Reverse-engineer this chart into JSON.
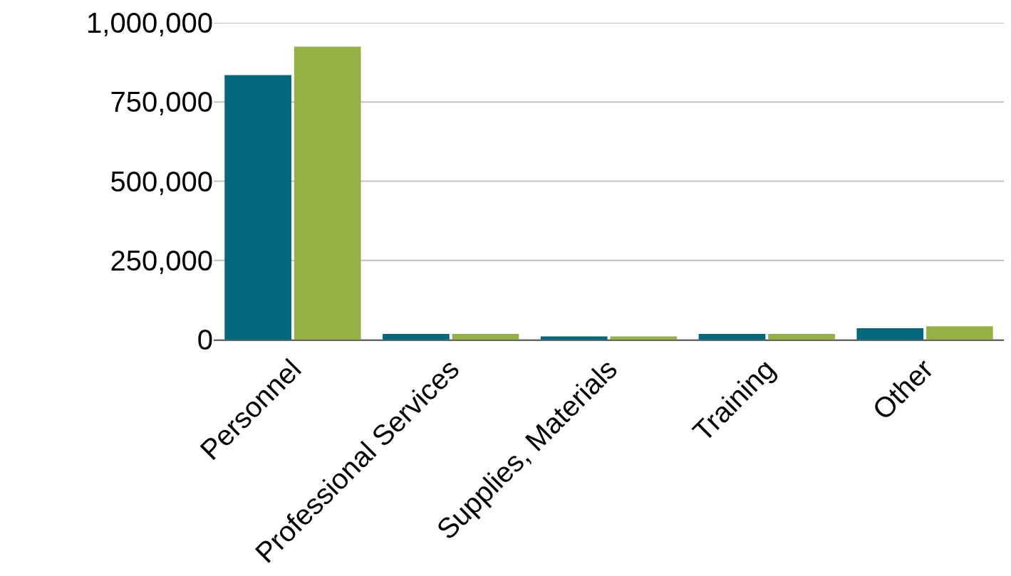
{
  "chart_data": {
    "type": "bar",
    "categories": [
      "Personnel",
      "Professional Services",
      "Supplies, Materials",
      "Training",
      "Other"
    ],
    "series": [
      {
        "color": "#03687c",
        "values": [
          835000,
          18000,
          10000,
          18000,
          36000
        ]
      },
      {
        "color": "#95b146",
        "values": [
          925000,
          18000,
          10000,
          18000,
          42000
        ]
      }
    ],
    "ylim": [
      0,
      1000000
    ],
    "yticks": [
      {
        "value": 0,
        "label": "0"
      },
      {
        "value": 250000,
        "label": "250,000"
      },
      {
        "value": 500000,
        "label": "500,000"
      },
      {
        "value": 750000,
        "label": "750,000"
      },
      {
        "value": 1000000,
        "label": "1,000,000"
      }
    ],
    "grid": "y"
  }
}
